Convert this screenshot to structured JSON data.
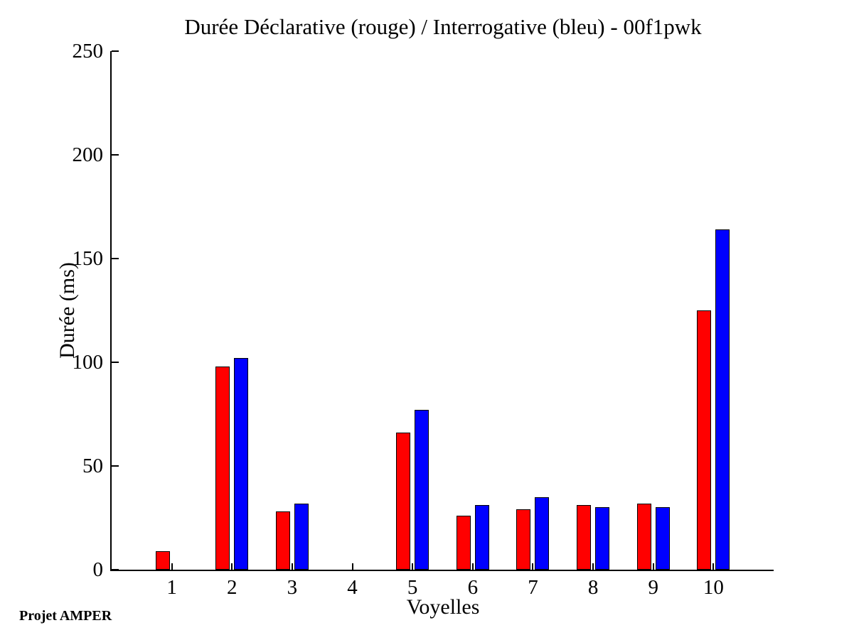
{
  "chart_data": {
    "type": "bar",
    "title": "Durée Déclarative (rouge) / Interrogative (bleu) - 00f1pwk",
    "xlabel": "Voyelles",
    "ylabel": "Durée (ms)",
    "categories": [
      1,
      2,
      3,
      4,
      5,
      6,
      7,
      8,
      9,
      10
    ],
    "series": [
      {
        "key": "declarative",
        "name": "Déclarative (rouge)",
        "color": "#ff0000",
        "values": [
          9,
          98,
          28,
          0,
          66,
          26,
          29,
          31,
          32,
          125
        ]
      },
      {
        "key": "interrogative",
        "name": "Interrogative (bleu)",
        "color": "#0000ff",
        "values": [
          0,
          102,
          32,
          0,
          77,
          31,
          35,
          30,
          30,
          164
        ]
      }
    ],
    "ylim": [
      0,
      250
    ],
    "xlim": [
      0,
      11
    ],
    "yticks": [
      0,
      50,
      100,
      150,
      200,
      250
    ],
    "grid": false,
    "legend_position": "none",
    "bar_edge_color": "#000000",
    "axes_color": "#000000",
    "background_color": "#ffffff"
  },
  "footer": {
    "annotation": "Projet AMPER"
  }
}
